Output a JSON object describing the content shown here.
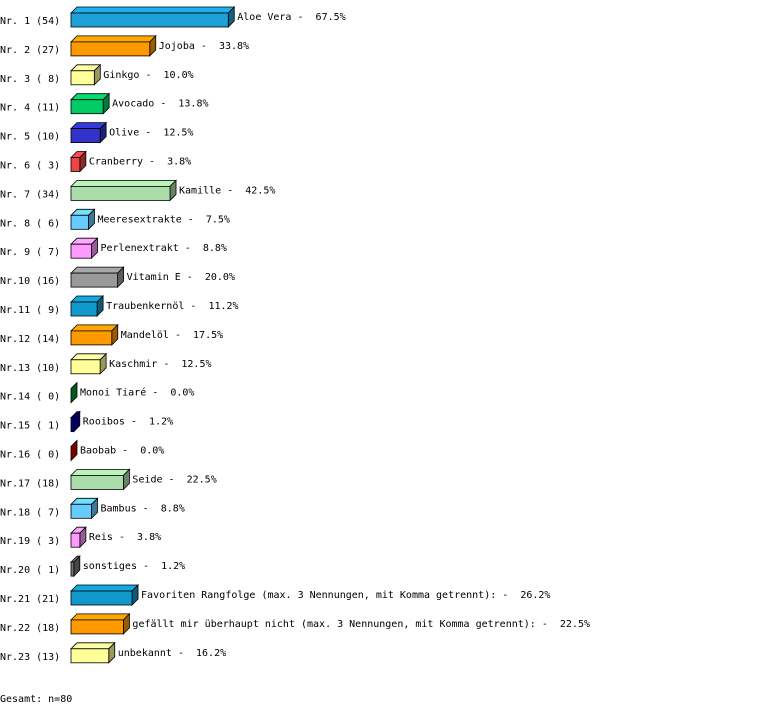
{
  "chart_data": {
    "type": "bar3d",
    "row_labels": [
      "Nr. 1 (54)",
      "Nr. 2 (27)",
      "Nr. 3 ( 8)",
      "Nr. 4 (11)",
      "Nr. 5 (10)",
      "Nr. 6 ( 3)",
      "Nr. 7 (34)",
      "Nr. 8 ( 6)",
      "Nr. 9 ( 7)",
      "Nr.10 (16)",
      "Nr.11 ( 9)",
      "Nr.12 (14)",
      "Nr.13 (10)",
      "Nr.14 ( 0)",
      "Nr.15 ( 1)",
      "Nr.16 ( 0)",
      "Nr.17 (18)",
      "Nr.18 ( 7)",
      "Nr.19 ( 3)",
      "Nr.20 ( 1)",
      "Nr.21 (21)",
      "Nr.22 (18)",
      "Nr.23 (13)"
    ],
    "categories": [
      "Aloe Vera",
      "Jojoba",
      "Ginkgo",
      "Avocado",
      "Olive",
      "Cranberry",
      "Kamille",
      "Meeresextrakte",
      "Perlenextrakt",
      "Vitamin E",
      "Traubenkernöl",
      "Mandelöl",
      "Kaschmir",
      "Monoi Tiaré",
      "Rooibos",
      "Baobab",
      "Seide",
      "Bambus",
      "Reis",
      "sonstiges",
      "Favoriten Rangfolge (max. 3 Nennungen, mit Komma getrennt):",
      "gefällt mir überhaupt nicht (max. 3 Nennungen, mit Komma getrennt):",
      "unbekannt"
    ],
    "separator": " -  ",
    "values": [
      67.5,
      33.8,
      10.0,
      13.8,
      12.5,
      3.8,
      42.5,
      7.5,
      8.8,
      20.0,
      11.2,
      17.5,
      12.5,
      0.0,
      1.2,
      0.0,
      22.5,
      8.8,
      3.8,
      1.2,
      26.2,
      22.5,
      16.2
    ],
    "value_labels": [
      "67.5%",
      "33.8%",
      "10.0%",
      "13.8%",
      "12.5%",
      "3.8%",
      "42.5%",
      "7.5%",
      "8.8%",
      "20.0%",
      "11.2%",
      "17.5%",
      "12.5%",
      "0.0%",
      "1.2%",
      "0.0%",
      "22.5%",
      "8.8%",
      "3.8%",
      "1.2%",
      "26.2%",
      "22.5%",
      "16.2%"
    ],
    "colors": [
      "#1ea0d8",
      "#ff9900",
      "#ffff99",
      "#00cc66",
      "#3333cc",
      "#ee4444",
      "#aaddaa",
      "#66ccff",
      "#ff99ff",
      "#999999",
      "#1199cc",
      "#ff9900",
      "#ffff99",
      "#009933",
      "#000099",
      "#cc0000",
      "#aaddaa",
      "#66ccff",
      "#ff99ff",
      "#777777",
      "#1199cc",
      "#ff9900",
      "#ffff99"
    ],
    "footer": "Gesamt: n=80"
  }
}
